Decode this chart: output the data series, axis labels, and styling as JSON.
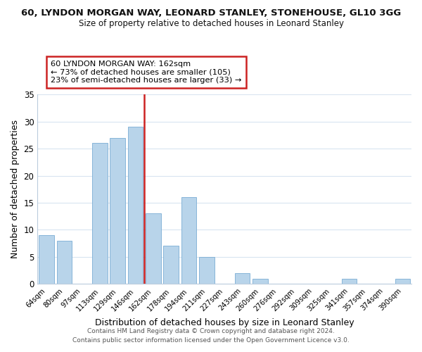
{
  "title": "60, LYNDON MORGAN WAY, LEONARD STANLEY, STONEHOUSE, GL10 3GG",
  "subtitle": "Size of property relative to detached houses in Leonard Stanley",
  "xlabel": "Distribution of detached houses by size in Leonard Stanley",
  "ylabel": "Number of detached properties",
  "bar_labels": [
    "64sqm",
    "80sqm",
    "97sqm",
    "113sqm",
    "129sqm",
    "146sqm",
    "162sqm",
    "178sqm",
    "194sqm",
    "211sqm",
    "227sqm",
    "243sqm",
    "260sqm",
    "276sqm",
    "292sqm",
    "309sqm",
    "325sqm",
    "341sqm",
    "357sqm",
    "374sqm",
    "390sqm"
  ],
  "bar_values": [
    9,
    8,
    0,
    26,
    27,
    29,
    13,
    7,
    16,
    5,
    0,
    2,
    1,
    0,
    0,
    0,
    0,
    1,
    0,
    0,
    1
  ],
  "bar_color": "#b8d4ea",
  "highlight_line_index": 6,
  "highlight_color": "#cc2222",
  "ylim": [
    0,
    35
  ],
  "yticks": [
    0,
    5,
    10,
    15,
    20,
    25,
    30,
    35
  ],
  "annotation_box_text": "60 LYNDON MORGAN WAY: 162sqm\n← 73% of detached houses are smaller (105)\n23% of semi-detached houses are larger (33) →",
  "footer_line1": "Contains HM Land Registry data © Crown copyright and database right 2024.",
  "footer_line2": "Contains public sector information licensed under the Open Government Licence v3.0.",
  "background_color": "#ffffff",
  "grid_color": "#d8e4f0"
}
